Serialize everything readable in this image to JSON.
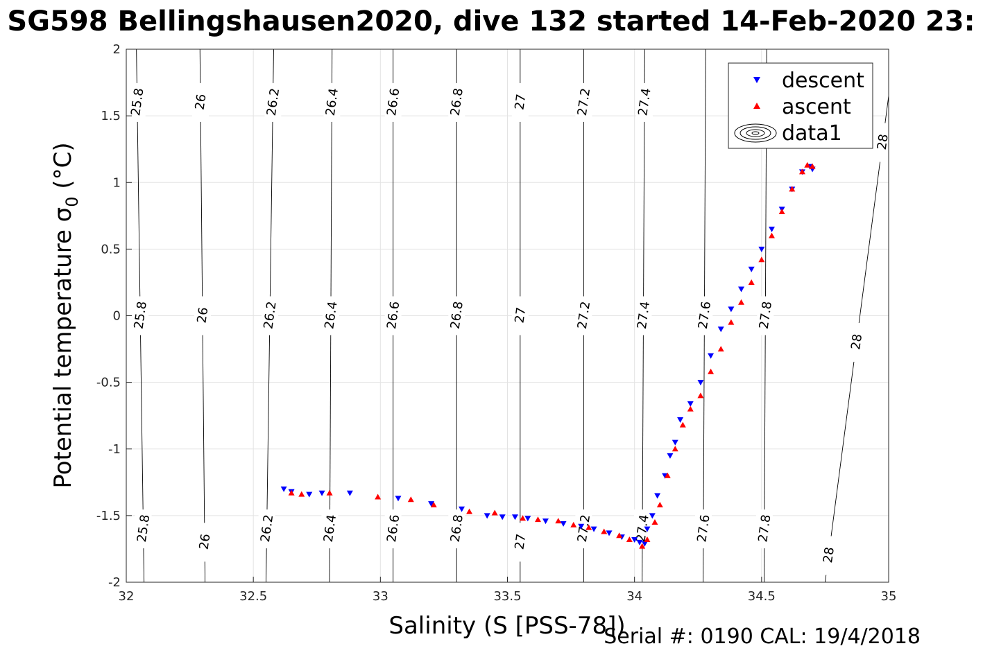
{
  "chart_data": {
    "type": "scatter",
    "title": "SG598 Bellingshausen2020, dive 132 started 14-Feb-2020 23:",
    "xlabel": "Salinity (S [PSS-78])",
    "ylabel": "Potential temperature σ₀ (°C)",
    "ylabel_main": "Potential temperature σ",
    "ylabel_sub": "0",
    "ylabel_unit": " (°C)",
    "footer": "Serial #: 0190  CAL: 19/4/2018",
    "xlim": [
      32,
      35
    ],
    "ylim": [
      -2,
      2
    ],
    "x_ticks": [
      32,
      32.5,
      33,
      33.5,
      34,
      34.5,
      35
    ],
    "y_ticks": [
      -2,
      -1.5,
      -1,
      -0.5,
      0,
      0.5,
      1,
      1.5,
      2
    ],
    "grid": true,
    "legend_position": "top-right",
    "legend": [
      {
        "label": "descent",
        "marker": "triangle-down",
        "color": "#0000ff"
      },
      {
        "label": "ascent",
        "marker": "triangle-up",
        "color": "#ff0000"
      },
      {
        "label": "data1",
        "marker": "contour",
        "color": "#000000"
      }
    ],
    "density_contours": [
      {
        "label": "25.8",
        "top": [
          32.04,
          2.0
        ],
        "bottom": [
          32.07,
          -2.0
        ],
        "labels_at": [
          1.6,
          0.0,
          -1.6
        ]
      },
      {
        "label": "26",
        "top": [
          32.29,
          2.0
        ],
        "bottom": [
          32.31,
          -2.0
        ],
        "labels_at": [
          1.6,
          0.0,
          -1.7
        ]
      },
      {
        "label": "26.2",
        "top": [
          32.58,
          2.0
        ],
        "bottom": [
          32.55,
          -2.0
        ],
        "labels_at": [
          1.6,
          0.0,
          -1.6
        ]
      },
      {
        "label": "26.4",
        "top": [
          32.81,
          2.0
        ],
        "bottom": [
          32.8,
          -2.0
        ],
        "labels_at": [
          1.6,
          0.0,
          -1.6
        ]
      },
      {
        "label": "26.6",
        "top": [
          33.05,
          2.0
        ],
        "bottom": [
          33.05,
          -2.0
        ],
        "labels_at": [
          1.6,
          0.0,
          -1.6
        ]
      },
      {
        "label": "26.8",
        "top": [
          33.3,
          2.0
        ],
        "bottom": [
          33.3,
          -2.0
        ],
        "labels_at": [
          1.6,
          0.0,
          -1.6
        ]
      },
      {
        "label": "27",
        "top": [
          33.55,
          2.0
        ],
        "bottom": [
          33.55,
          -2.0
        ],
        "labels_at": [
          1.6,
          0.0,
          -1.7
        ]
      },
      {
        "label": "27.2",
        "top": [
          33.8,
          2.0
        ],
        "bottom": [
          33.8,
          -2.0
        ],
        "labels_at": [
          1.6,
          0.0,
          -1.6
        ]
      },
      {
        "label": "27.4",
        "top": [
          34.04,
          2.0
        ],
        "bottom": [
          34.03,
          -2.0
        ],
        "labels_at": [
          1.6,
          0.0,
          -1.6
        ]
      },
      {
        "label": "27.6",
        "top": [
          34.28,
          2.0
        ],
        "bottom": [
          34.27,
          -2.0
        ],
        "labels_at": [
          0.0,
          -1.6
        ]
      },
      {
        "label": "27.8",
        "top": [
          34.52,
          2.0
        ],
        "bottom": [
          34.51,
          -2.0
        ],
        "labels_at": [
          0.0,
          -1.6
        ]
      },
      {
        "label": "28",
        "top": [
          35.0,
          1.65
        ],
        "bottom": [
          34.75,
          -2.0
        ],
        "labels_at": [
          1.3,
          -0.2,
          -1.8
        ]
      }
    ],
    "series": [
      {
        "name": "descent",
        "marker": "triangle-down",
        "color": "#0000ff",
        "points": [
          [
            32.62,
            -1.3
          ],
          [
            32.65,
            -1.32
          ],
          [
            32.72,
            -1.34
          ],
          [
            32.77,
            -1.33
          ],
          [
            32.88,
            -1.33
          ],
          [
            33.07,
            -1.37
          ],
          [
            33.2,
            -1.41
          ],
          [
            33.32,
            -1.45
          ],
          [
            33.42,
            -1.5
          ],
          [
            33.48,
            -1.51
          ],
          [
            33.53,
            -1.51
          ],
          [
            33.58,
            -1.52
          ],
          [
            33.65,
            -1.54
          ],
          [
            33.72,
            -1.56
          ],
          [
            33.79,
            -1.58
          ],
          [
            33.84,
            -1.6
          ],
          [
            33.9,
            -1.63
          ],
          [
            33.95,
            -1.66
          ],
          [
            34.0,
            -1.68
          ],
          [
            34.02,
            -1.7
          ],
          [
            34.04,
            -1.71
          ],
          [
            34.05,
            -1.6
          ],
          [
            34.07,
            -1.5
          ],
          [
            34.09,
            -1.35
          ],
          [
            34.12,
            -1.2
          ],
          [
            34.14,
            -1.05
          ],
          [
            34.16,
            -0.95
          ],
          [
            34.18,
            -0.78
          ],
          [
            34.22,
            -0.66
          ],
          [
            34.26,
            -0.5
          ],
          [
            34.3,
            -0.3
          ],
          [
            34.34,
            -0.1
          ],
          [
            34.38,
            0.05
          ],
          [
            34.42,
            0.2
          ],
          [
            34.46,
            0.35
          ],
          [
            34.5,
            0.5
          ],
          [
            34.54,
            0.65
          ],
          [
            34.58,
            0.8
          ],
          [
            34.62,
            0.95
          ],
          [
            34.66,
            1.08
          ],
          [
            34.69,
            1.12
          ],
          [
            34.7,
            1.1
          ]
        ]
      },
      {
        "name": "ascent",
        "marker": "triangle-up",
        "color": "#ff0000",
        "points": [
          [
            32.65,
            -1.33
          ],
          [
            32.69,
            -1.34
          ],
          [
            32.8,
            -1.33
          ],
          [
            32.99,
            -1.36
          ],
          [
            33.12,
            -1.38
          ],
          [
            33.21,
            -1.42
          ],
          [
            33.35,
            -1.47
          ],
          [
            33.45,
            -1.48
          ],
          [
            33.56,
            -1.52
          ],
          [
            33.62,
            -1.53
          ],
          [
            33.7,
            -1.54
          ],
          [
            33.76,
            -1.57
          ],
          [
            33.82,
            -1.59
          ],
          [
            33.88,
            -1.62
          ],
          [
            33.94,
            -1.65
          ],
          [
            33.98,
            -1.68
          ],
          [
            34.03,
            -1.73
          ],
          [
            34.05,
            -1.68
          ],
          [
            34.08,
            -1.55
          ],
          [
            34.1,
            -1.42
          ],
          [
            34.13,
            -1.2
          ],
          [
            34.16,
            -1.0
          ],
          [
            34.19,
            -0.82
          ],
          [
            34.22,
            -0.7
          ],
          [
            34.26,
            -0.6
          ],
          [
            34.3,
            -0.42
          ],
          [
            34.34,
            -0.25
          ],
          [
            34.38,
            -0.05
          ],
          [
            34.42,
            0.1
          ],
          [
            34.46,
            0.25
          ],
          [
            34.5,
            0.42
          ],
          [
            34.54,
            0.6
          ],
          [
            34.58,
            0.78
          ],
          [
            34.62,
            0.95
          ],
          [
            34.66,
            1.08
          ],
          [
            34.68,
            1.13
          ],
          [
            34.7,
            1.12
          ]
        ]
      }
    ]
  }
}
